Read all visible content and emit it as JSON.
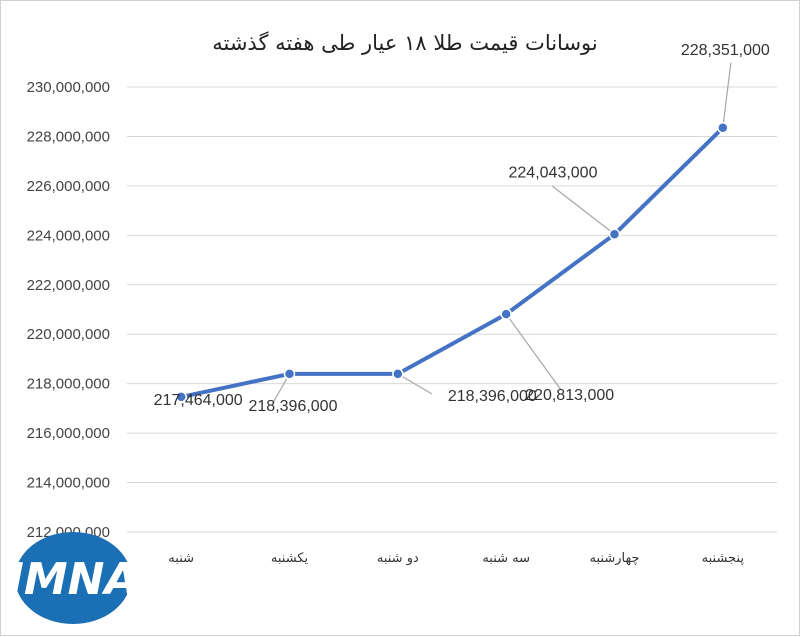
{
  "chart_data": {
    "type": "line",
    "title": "نوسانات قیمت طلا ۱۸ عیار طی هفته گذشته",
    "categories": [
      "شنبه",
      "یکشنبه",
      "دو شنبه",
      "سه شنبه",
      "چهارشنبه",
      "پنجشنبه"
    ],
    "series": [
      {
        "values": [
          217464000,
          218396000,
          218396000,
          220813000,
          224043000,
          228351000
        ]
      }
    ],
    "data_labels": [
      "217,464,000",
      "218,396,000",
      "218,396,000",
      "220,813,000",
      "224,043,000",
      "228,351,000"
    ],
    "ylim": [
      212000000,
      230000000
    ],
    "ytick_step": 2000000,
    "ytick_labels": [
      "212,000,000",
      "214,000,000",
      "216,000,000",
      "218,000,000",
      "220,000,000",
      "222,000,000",
      "224,000,000",
      "226,000,000",
      "228,000,000",
      "230,000,000"
    ],
    "grid": true,
    "legend": "none",
    "line_color": "#4472C4",
    "grid_color": "#d9d9d9",
    "leader_color": "#a6a6a6"
  },
  "logo": {
    "text": "IMNA",
    "color": "#1b6fb5"
  }
}
